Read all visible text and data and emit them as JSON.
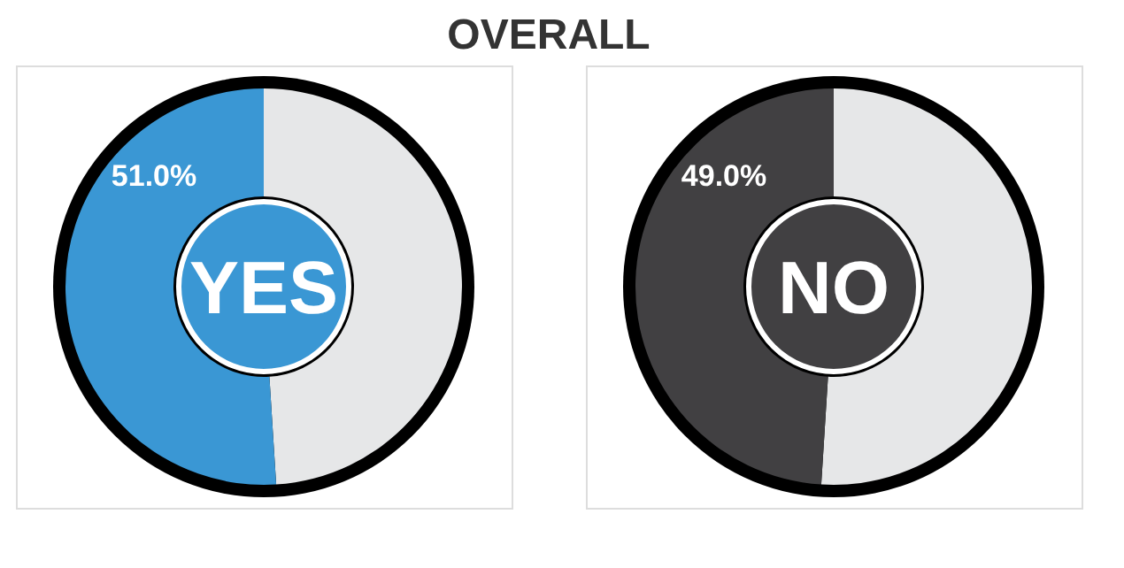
{
  "chart_data": [
    {
      "type": "donut",
      "title": "OVERALL",
      "categories": [
        null,
        "YES"
      ],
      "values": [
        49.0,
        51.0
      ],
      "colors": [
        "#e6e7e8",
        "#3a97d4"
      ],
      "value_labels": [
        null,
        "51.0%"
      ]
    },
    {
      "type": "donut",
      "categories": [
        null,
        "NO"
      ],
      "values": [
        51.0,
        49.0
      ],
      "colors": [
        "#e6e7e8",
        "#414042"
      ],
      "value_labels": [
        null,
        "49.0%"
      ]
    }
  ]
}
